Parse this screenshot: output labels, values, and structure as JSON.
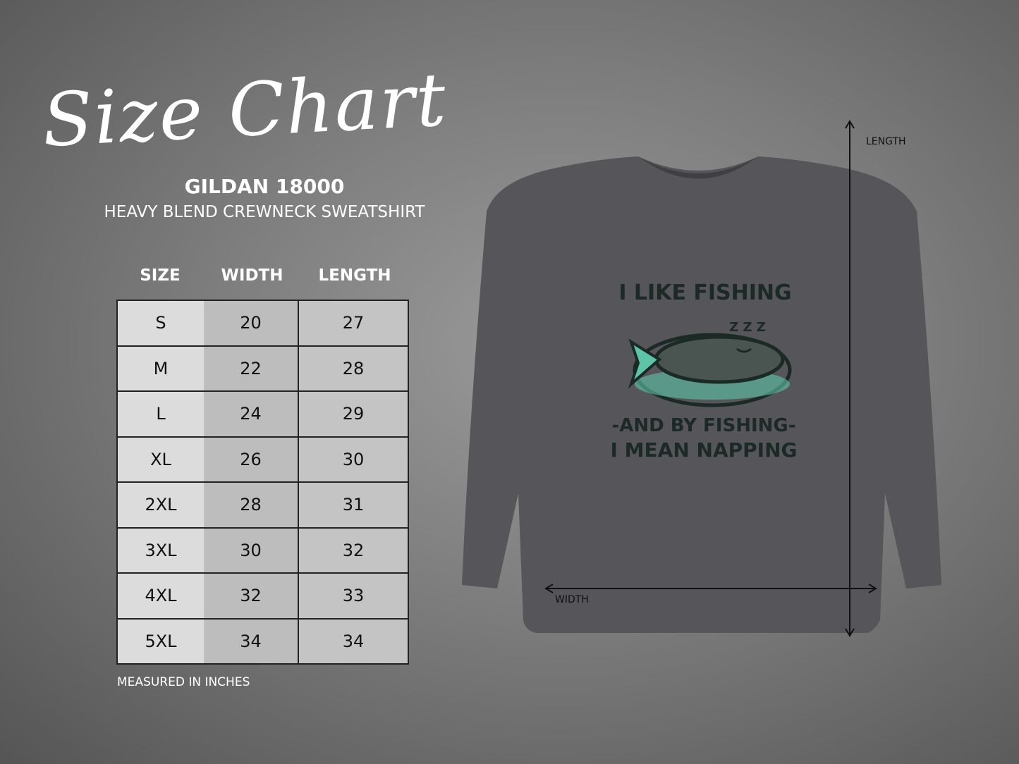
{
  "title": "Size Chart",
  "model": "GILDAN 18000",
  "description": "HEAVY BLEND CREWNECK SWEATSHIRT",
  "table": {
    "headers": [
      "SIZE",
      "WIDTH",
      "LENGTH"
    ],
    "rows": [
      [
        "S",
        "20",
        "27"
      ],
      [
        "M",
        "22",
        "28"
      ],
      [
        "L",
        "24",
        "29"
      ],
      [
        "XL",
        "26",
        "30"
      ],
      [
        "2XL",
        "28",
        "31"
      ],
      [
        "3XL",
        "30",
        "32"
      ],
      [
        "4XL",
        "32",
        "33"
      ],
      [
        "5XL",
        "34",
        "34"
      ]
    ]
  },
  "note": "MEASURED IN INCHES",
  "dimensions": {
    "length_label": "LENGTH",
    "width_label": "WIDTH"
  },
  "print": {
    "line1": "I LIKE FISHING",
    "zzz": "Z Z Z",
    "line2": "-AND BY FISHING-",
    "line3": "I MEAN NAPPING"
  },
  "colors": {
    "shirt": "#55555a",
    "print_dark": "#1c2a26",
    "print_accent": "#5ec4a8"
  }
}
